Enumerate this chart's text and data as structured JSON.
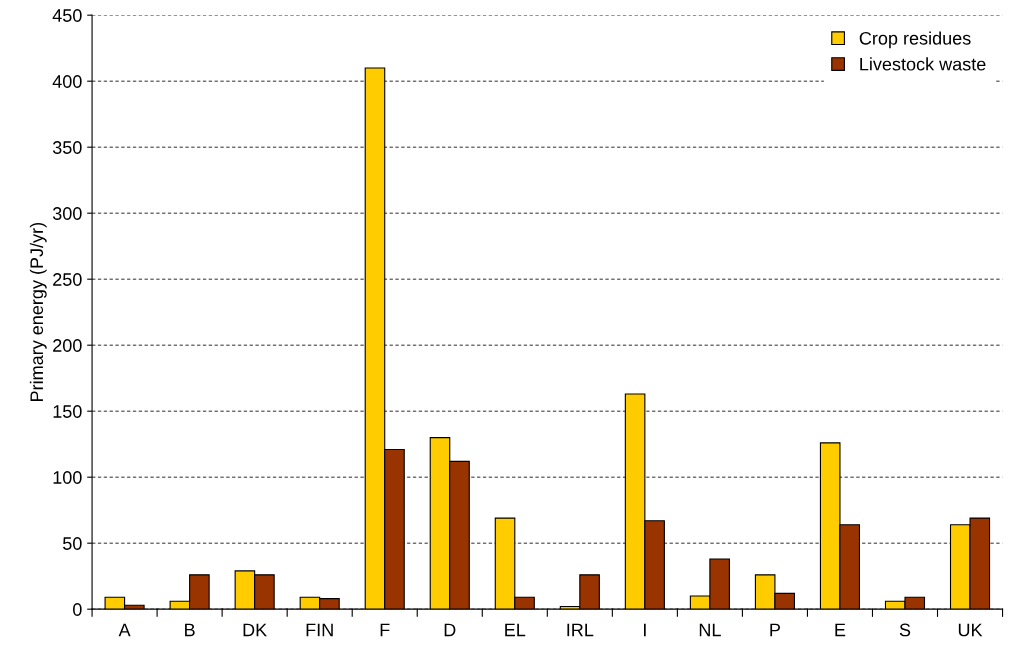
{
  "chart_data": {
    "type": "bar",
    "ylabel": "Primary energy (PJ/yr)",
    "categories": [
      "A",
      "B",
      "DK",
      "FIN",
      "F",
      "D",
      "EL",
      "IRL",
      "I",
      "NL",
      "P",
      "E",
      "S",
      "UK"
    ],
    "series": [
      {
        "name": "Crop residues",
        "color": "#ffcc00",
        "values": [
          9,
          6,
          29,
          9,
          410,
          130,
          69,
          2,
          163,
          10,
          26,
          126,
          6,
          64
        ]
      },
      {
        "name": "Livestock waste",
        "color": "#993300",
        "values": [
          3,
          26,
          26,
          8,
          121,
          112,
          9,
          26,
          67,
          38,
          12,
          64,
          9,
          69
        ]
      }
    ],
    "ylim": [
      0,
      450
    ],
    "yticks": [
      0,
      50,
      100,
      150,
      200,
      250,
      300,
      350,
      400,
      450
    ],
    "grid": "y",
    "legend": "top right"
  }
}
